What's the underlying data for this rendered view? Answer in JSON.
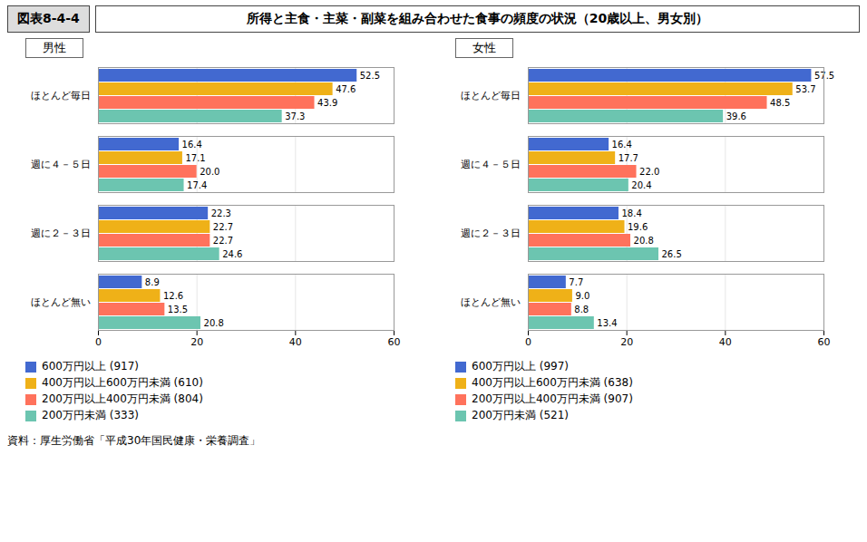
{
  "title": "所得と主食・主菜・副菜を組み合わせた食事の頻度の状況（20歳以上、男女別）",
  "annotations": [
    "図表8-4-4",
    "資料：厚生労働省「平成30年国民健康・栄養調査」"
  ],
  "chart_data": [
    {
      "type": "bar",
      "title": "男性",
      "orientation": "horizontal",
      "categories": [
        "ほとんど毎日",
        "週に４－５日",
        "週に２－３日",
        "ほとんど無い"
      ],
      "series": [
        {
          "name": "600万円以上  (917)",
          "values": [
            52.5,
            16.4,
            22.3,
            8.9
          ],
          "value_labels": [
            "52.5",
            "16.4",
            "22.3",
            "8.9"
          ]
        },
        {
          "name": "400万円以上600万円未満  (610)",
          "values": [
            47.6,
            17.1,
            22.7,
            12.6
          ],
          "value_labels": [
            "47.6",
            "17.1",
            "22.7",
            "12.6"
          ]
        },
        {
          "name": "200万円以上400万円未満  (804)",
          "values": [
            43.9,
            20.0,
            22.7,
            13.5
          ],
          "value_labels": [
            "43.9",
            "20.0",
            "22.7",
            "13.5"
          ]
        },
        {
          "name": "200万円未満  (333)",
          "values": [
            37.3,
            17.4,
            24.6,
            20.8
          ],
          "value_labels": [
            "37.3",
            "17.4",
            "24.6",
            "20.8"
          ]
        }
      ],
      "xlim": [
        0,
        60
      ],
      "xticks": [
        0,
        20,
        40,
        60
      ],
      "grid": true,
      "data_labels": true
    },
    {
      "type": "bar",
      "title": "女性",
      "orientation": "horizontal",
      "categories": [
        "ほとんど毎日",
        "週に４－５日",
        "週に２－３日",
        "ほとんど無い"
      ],
      "series": [
        {
          "name": "600万円以上  (997)",
          "values": [
            57.5,
            16.4,
            18.4,
            7.7
          ],
          "value_labels": [
            "57.5",
            "16.4",
            "18.4",
            "7.7"
          ]
        },
        {
          "name": "400万円以上600万円未満  (638)",
          "values": [
            53.7,
            17.7,
            19.6,
            9.0
          ],
          "value_labels": [
            "53.7",
            "17.7",
            "19.6",
            "9.0"
          ]
        },
        {
          "name": "200万円以上400万円未満  (907)",
          "values": [
            48.5,
            22.0,
            20.8,
            8.8
          ],
          "value_labels": [
            "48.5",
            "22.0",
            "20.8",
            "8.8"
          ]
        },
        {
          "name": "200万円未満  (521)",
          "values": [
            39.6,
            20.4,
            26.5,
            13.4
          ],
          "value_labels": [
            "39.6",
            "20.4",
            "26.5",
            "13.4"
          ]
        }
      ],
      "xlim": [
        0,
        60
      ],
      "xticks": [
        0,
        20,
        40,
        60
      ],
      "grid": true,
      "data_labels": true
    }
  ]
}
